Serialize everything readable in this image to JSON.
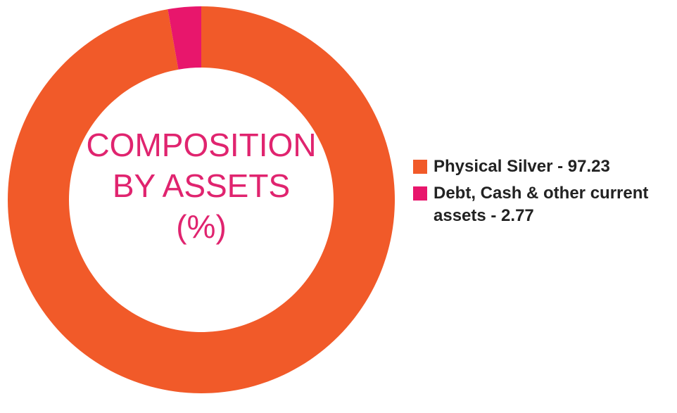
{
  "chart_data": {
    "type": "donut",
    "title": [
      "COMPOSITION",
      "BY ASSETS",
      "(%)"
    ],
    "categories": [
      "Physical Silver - 97.23",
      "Debt, Cash & other current assets - 2.77"
    ],
    "values": [
      97.23,
      2.77
    ],
    "colors": [
      "#f15a29",
      "#e8166c"
    ],
    "legend": "right"
  }
}
